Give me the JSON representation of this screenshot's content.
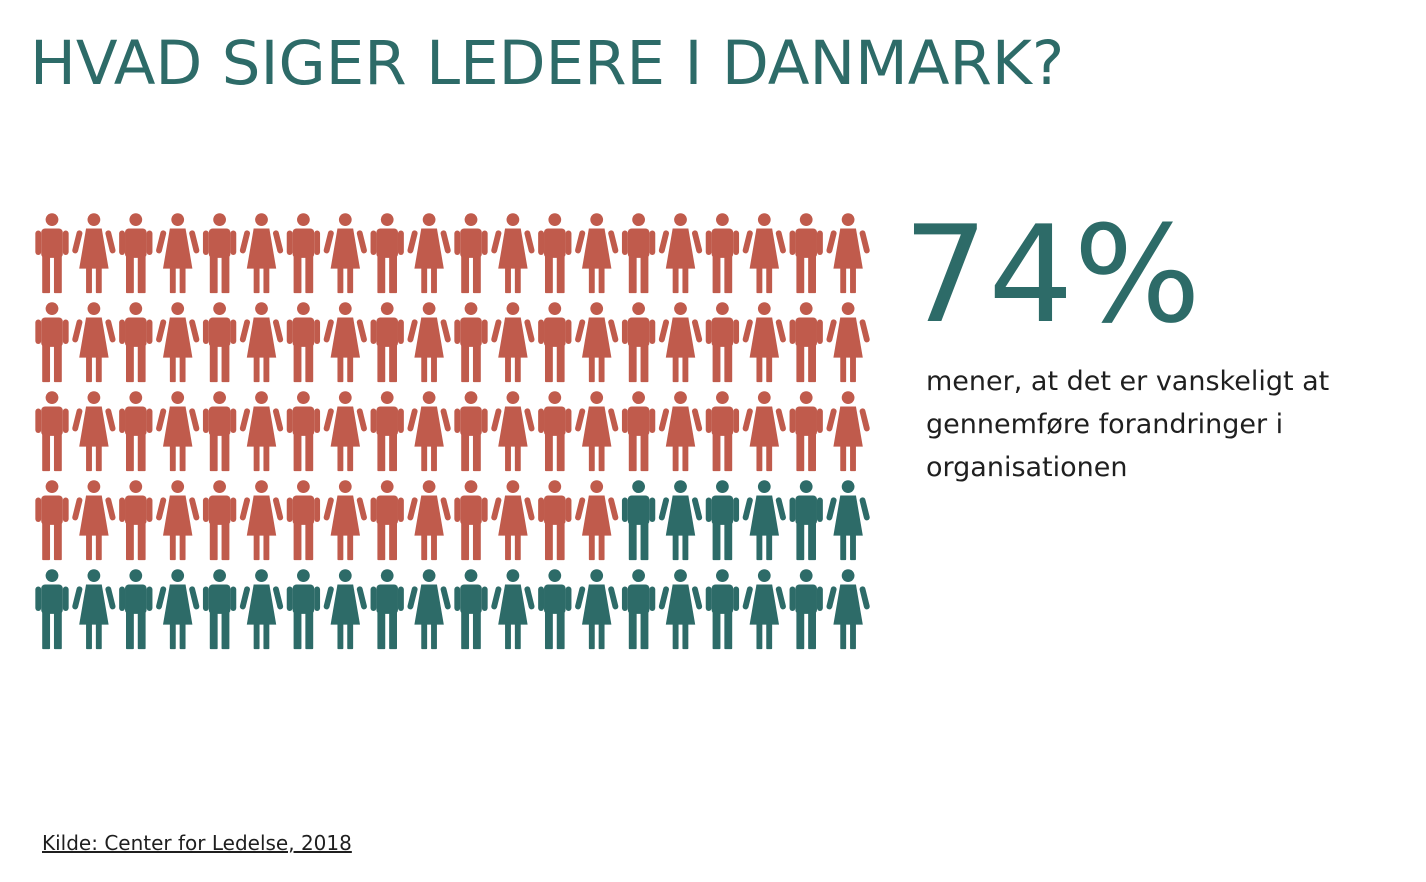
{
  "title": "HVAD SIGER LEDERE I DANMARK?",
  "colors": {
    "accent": "#2d6b68",
    "highlight": "#c05b4c",
    "text": "#1f1f1f"
  },
  "chart_data": {
    "type": "pictogram",
    "total": 100,
    "highlighted": 74,
    "columns": 20,
    "rows": 5,
    "value_label": "74%",
    "description": "mener, at det er vanskeligt at gennemføre forandringer i organisationen"
  },
  "source": "Kilde: Center for Ledelse, 2018"
}
